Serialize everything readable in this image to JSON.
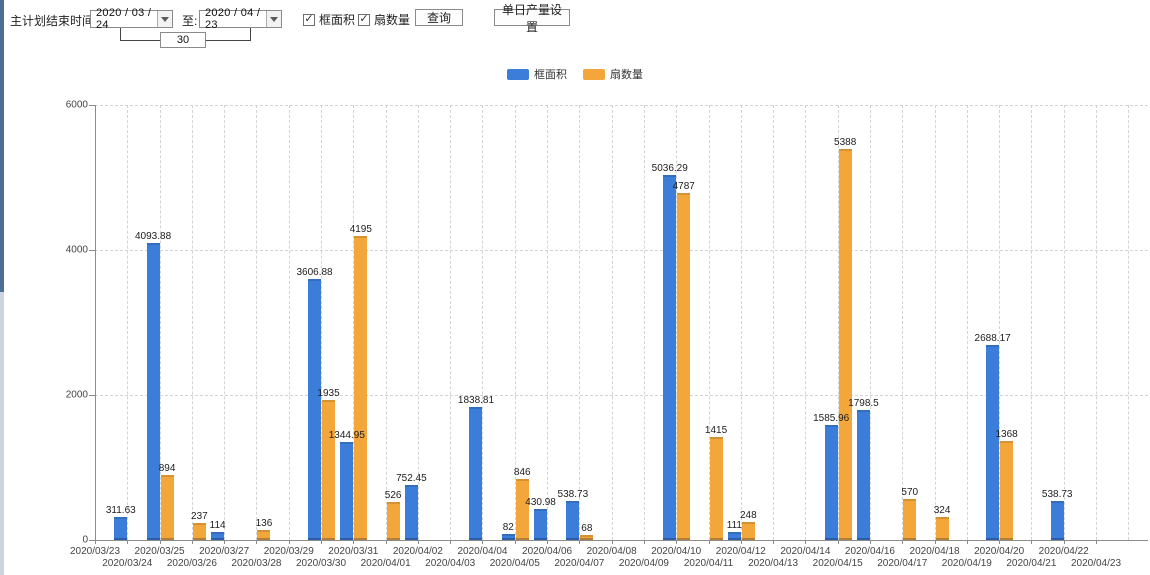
{
  "toolbar": {
    "main_plan_end_label": "主计划结束时间:",
    "date_from": "2020 / 03 / 24",
    "to_label": "至:",
    "date_to": "2020 / 04 / 23",
    "days_between": "30",
    "checkbox_frame_area": "框面积",
    "checkbox_fan_count": "扇数量",
    "checkbox_frame_area_checked": "✓",
    "checkbox_fan_count_checked": "✓",
    "query_button": "查询",
    "daily_output_button": "单日产量设置"
  },
  "chart_data": {
    "type": "bar",
    "title": "",
    "xlabel": "",
    "ylabel": "",
    "ylim": [
      0,
      6000
    ],
    "yticks": [
      0,
      2000,
      4000,
      6000
    ],
    "grid": true,
    "legend_position": "top",
    "categories": [
      "2020/03/23",
      "2020/03/24",
      "2020/03/25",
      "2020/03/26",
      "2020/03/27",
      "2020/03/28",
      "2020/03/29",
      "2020/03/30",
      "2020/03/31",
      "2020/04/01",
      "2020/04/02",
      "2020/04/03",
      "2020/04/04",
      "2020/04/05",
      "2020/04/06",
      "2020/04/07",
      "2020/04/08",
      "2020/04/09",
      "2020/04/10",
      "2020/04/11",
      "2020/04/12",
      "2020/04/13",
      "2020/04/14",
      "2020/04/15",
      "2020/04/16",
      "2020/04/17",
      "2020/04/18",
      "2020/04/19",
      "2020/04/20",
      "2020/04/21",
      "2020/04/22",
      "2020/04/23"
    ],
    "series": [
      {
        "name": "框面积",
        "color": "#3b7dd8",
        "values": [
          null,
          311.63,
          4093.88,
          null,
          114,
          null,
          null,
          3606.88,
          1344.95,
          null,
          752.45,
          null,
          1838.81,
          82,
          430.98,
          538.73,
          null,
          null,
          5036.29,
          null,
          111,
          null,
          null,
          1585.96,
          1798.5,
          null,
          null,
          null,
          2688.17,
          null,
          538.73,
          null
        ]
      },
      {
        "name": "扇数量",
        "color": "#f3a73b",
        "values": [
          null,
          null,
          894,
          237,
          null,
          136,
          null,
          1935,
          4195,
          526,
          null,
          null,
          null,
          846,
          null,
          68,
          null,
          null,
          4787,
          1415,
          248,
          null,
          null,
          5388,
          null,
          570,
          324,
          null,
          1368,
          null,
          null,
          null
        ]
      }
    ]
  }
}
